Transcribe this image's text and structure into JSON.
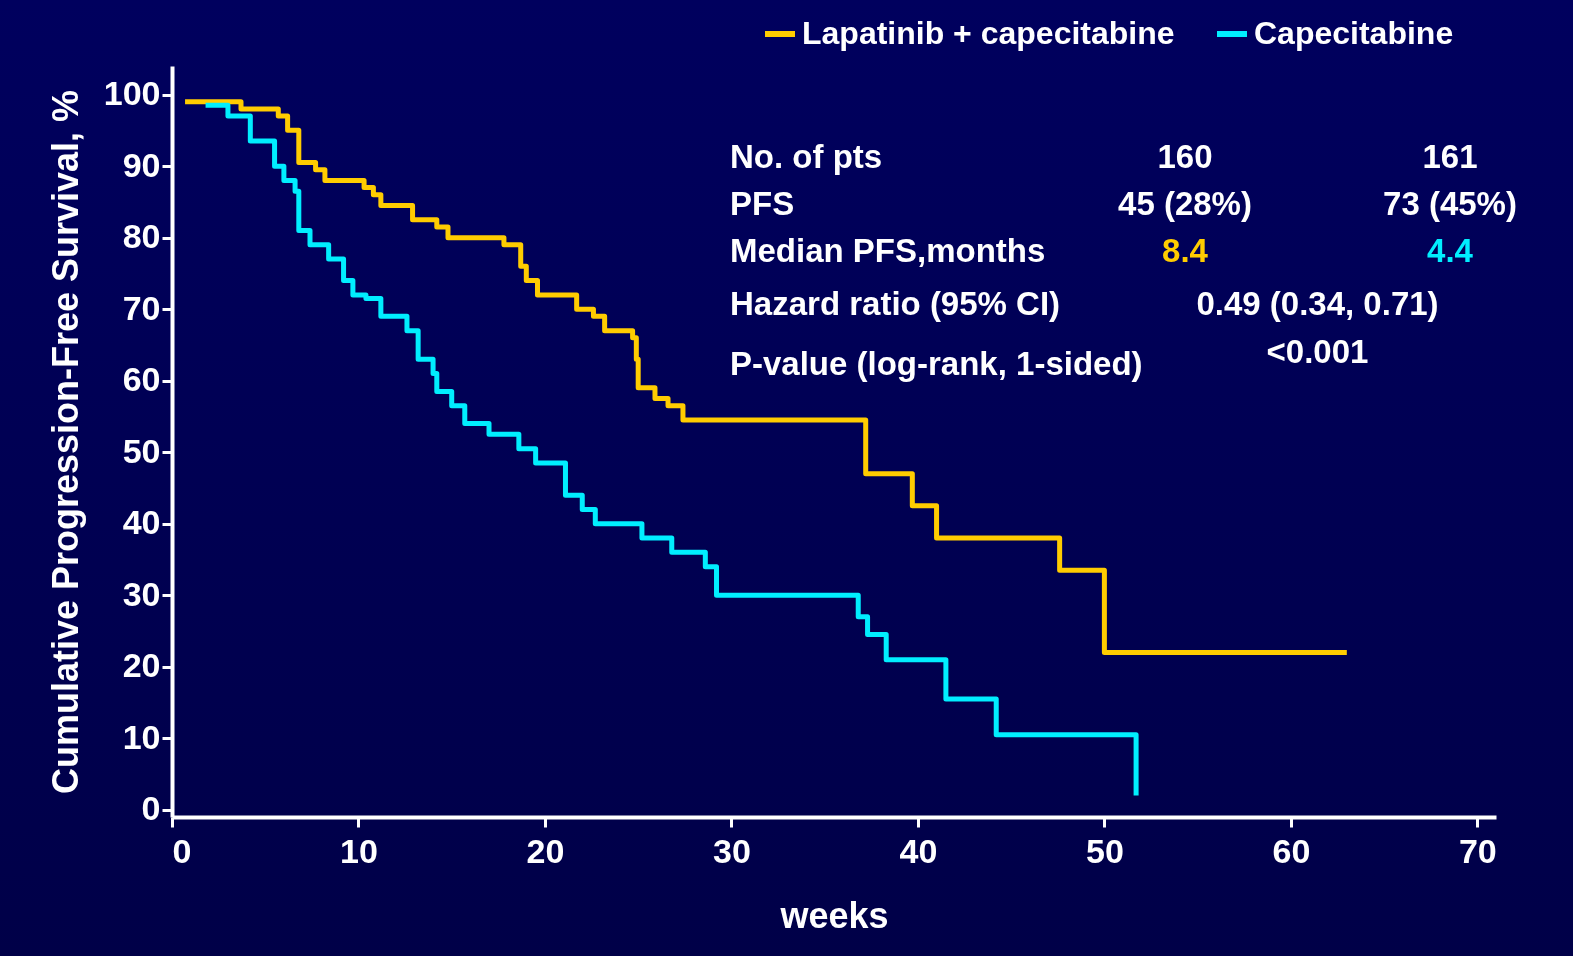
{
  "chart_data": {
    "type": "step",
    "xlabel": "weeks",
    "ylabel": "Cumulative Progression-Free Survival, %",
    "xlim": [
      0,
      71
    ],
    "ylim": [
      -1,
      104
    ],
    "xticks": [
      0,
      10,
      20,
      30,
      40,
      50,
      60,
      70
    ],
    "yticks": [
      0,
      10,
      20,
      30,
      40,
      50,
      60,
      70,
      80,
      90,
      100
    ],
    "grid": false,
    "legend": "top right",
    "line_style": "solid",
    "series": [
      {
        "name": "Lapatinib + capecitabine",
        "color": "#ffcc00",
        "x": [
          0.7,
          3.7,
          5.7,
          6.2,
          6.8,
          7.7,
          8.2,
          10.3,
          10.8,
          11.2,
          12.9,
          14.2,
          14.8,
          17.8,
          18.7,
          19,
          19.6,
          21.7,
          22.6,
          23.2,
          24.7,
          24.9,
          25,
          25.9,
          26.6,
          27.4,
          37.2,
          39.7,
          41,
          47.6,
          50,
          63
        ],
        "values": [
          99,
          98,
          97,
          95,
          90.5,
          89.5,
          88,
          87,
          86,
          84.5,
          82.5,
          81.5,
          80,
          79,
          76,
          74,
          72,
          70,
          69,
          67,
          66,
          63,
          59,
          57.5,
          56.5,
          54.5,
          47,
          42.5,
          38,
          33.5,
          22,
          22
        ]
      },
      {
        "name": "Capecitabine",
        "color": "#00eeff",
        "x": [
          1.8,
          3,
          4.2,
          5.5,
          6,
          6.6,
          6.8,
          7.4,
          8.4,
          9.2,
          9.7,
          10.4,
          11.2,
          12.6,
          13.2,
          14,
          14.2,
          15,
          15.7,
          17,
          18.6,
          19.5,
          21.1,
          22,
          22.7,
          25.2,
          26.8,
          28.6,
          29.2,
          36.8,
          37.3,
          38.3,
          41.5,
          44.2,
          51.7
        ],
        "values": [
          98.5,
          97,
          93.5,
          90,
          88,
          86.5,
          81,
          79,
          77,
          74,
          72,
          71.5,
          69,
          67,
          63,
          61,
          58.5,
          56.5,
          54,
          52.5,
          50.5,
          48.5,
          44,
          42,
          40,
          38,
          36,
          34,
          30,
          27,
          24.5,
          21,
          15.5,
          10.5,
          2
        ]
      }
    ],
    "annotations": [
      "No. of pts",
      "160",
      "161",
      "PFS",
      "45 (28%)",
      "73 (45%)",
      "Median PFS,months",
      "8.4",
      "4.4",
      "Hazard ratio (95% CI)",
      "0.49 (0.34, 0.71)",
      "P-value (log-rank, 1-sided)",
      "<0.001"
    ]
  }
}
